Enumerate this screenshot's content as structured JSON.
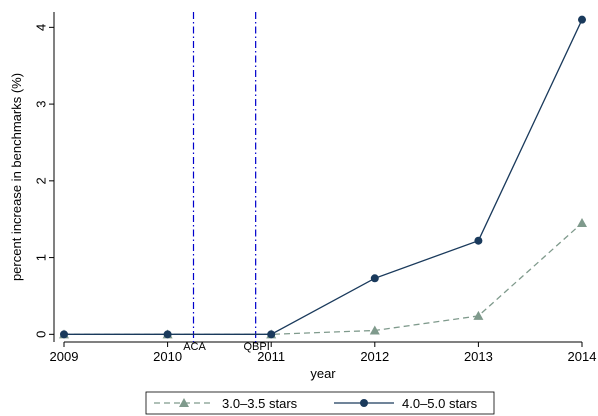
{
  "chart_data": {
    "type": "line",
    "title": "",
    "xlabel": "year",
    "ylabel": "percent increase in benchmarks (%)",
    "x": [
      2009,
      2010,
      2011,
      2012,
      2013,
      2014
    ],
    "xticks": [
      "2009",
      "2010",
      "2011",
      "2012",
      "2013",
      "2014"
    ],
    "yticks": [
      "0",
      "1",
      "2",
      "3",
      "4"
    ],
    "xlim": [
      2009,
      2014
    ],
    "ylim": [
      -0.1,
      4.2
    ],
    "grid": false,
    "legend_position": "bottom",
    "series": [
      {
        "name": "3.0–3.5 stars",
        "values": [
          0,
          0,
          0,
          0.05,
          0.24,
          1.45
        ],
        "color": "#7f9a8c",
        "line_style": "dashed",
        "marker": "triangle"
      },
      {
        "name": "4.0–5.0 stars",
        "values": [
          0,
          0,
          0,
          0.73,
          1.22,
          4.1
        ],
        "color": "#1a3a5c",
        "line_style": "solid",
        "marker": "circle"
      }
    ],
    "annotations": [
      {
        "label": "ACA",
        "x": 2010.25,
        "color": "#0000cc",
        "line_style": "dash-dot"
      },
      {
        "label": "QBPI",
        "x": 2010.85,
        "color": "#0000cc",
        "line_style": "dash-dot"
      }
    ]
  }
}
